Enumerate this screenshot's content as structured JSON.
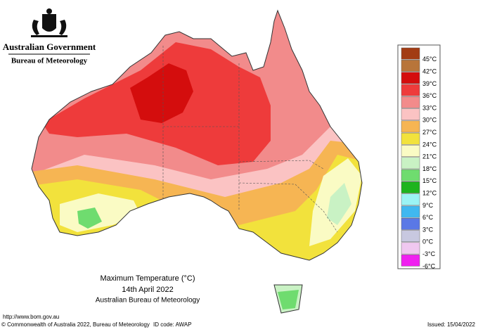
{
  "header": {
    "government": "Australian Government",
    "bureau": "Bureau of Meteorology"
  },
  "legend": [
    {
      "label": "45°C",
      "color": "#a23c14"
    },
    {
      "label": "42°C",
      "color": "#b8753a"
    },
    {
      "label": "39°C",
      "color": "#d40d0d"
    },
    {
      "label": "36°C",
      "color": "#ee3b3b"
    },
    {
      "label": "33°C",
      "color": "#f28b8b"
    },
    {
      "label": "30°C",
      "color": "#fbc3c3"
    },
    {
      "label": "27°C",
      "color": "#f6b553"
    },
    {
      "label": "24°C",
      "color": "#f2e23c"
    },
    {
      "label": "21°C",
      "color": "#fafbc4"
    },
    {
      "label": "18°C",
      "color": "#c9f2c4"
    },
    {
      "label": "15°C",
      "color": "#6fdc6f"
    },
    {
      "label": "12°C",
      "color": "#1eb41e"
    },
    {
      "label": "9°C",
      "color": "#9bf4f4"
    },
    {
      "label": "6°C",
      "color": "#40b8f0"
    },
    {
      "label": "3°C",
      "color": "#5a78e6"
    },
    {
      "label": "0°C",
      "color": "#c8c8e0"
    },
    {
      "label": "-3°C",
      "color": "#f0c8f0"
    },
    {
      "label": "-6°C",
      "color": "#f020f0"
    }
  ],
  "caption": {
    "title": "Maximum Temperature (°C)",
    "date": "14th April 2022",
    "source": "Australian Bureau of Meteorology"
  },
  "footer": {
    "url": "http://www.bom.gov.au",
    "copyright": "© Commonwealth of Australia 2022, Bureau of Meteorology",
    "id_code": "ID code: AWAP",
    "issued": "Issued: 15/04/2022"
  }
}
